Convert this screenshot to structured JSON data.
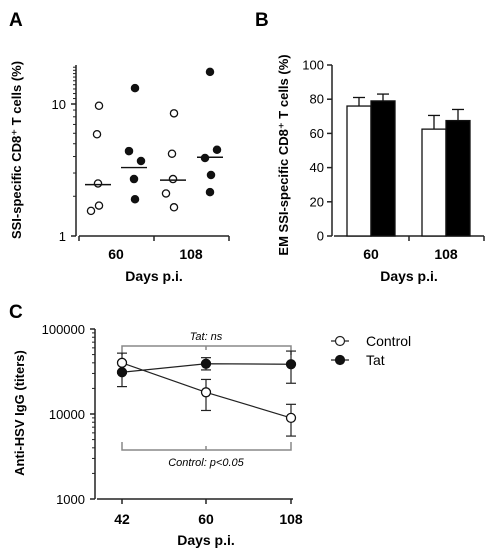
{
  "chart_data": [
    {
      "panel": "A",
      "type": "scatter",
      "ylabel": "SSI-specific CD8⁺ T cells (%)",
      "xlabel": "Days p.i.",
      "y_scale": "log",
      "ylim": [
        1,
        20
      ],
      "y_ticks": [
        "1",
        "10"
      ],
      "x_ticks": [
        "60",
        "108"
      ],
      "grid": false,
      "groups": [
        {
          "day": "60",
          "treatment": "Control",
          "marker": "open",
          "values": [
            9.7,
            5.9,
            2.5,
            1.7,
            1.55
          ],
          "median": 2.45
        },
        {
          "day": "60",
          "treatment": "Tat",
          "marker": "filled",
          "values": [
            13.2,
            4.4,
            3.7,
            2.7,
            1.9
          ],
          "median": 3.3
        },
        {
          "day": "108",
          "treatment": "Control",
          "marker": "open",
          "values": [
            8.5,
            4.2,
            2.7,
            2.1,
            1.65
          ],
          "median": 2.65
        },
        {
          "day": "108",
          "treatment": "Tat",
          "marker": "filled",
          "values": [
            17.5,
            4.5,
            3.9,
            2.9,
            2.15
          ],
          "median": 3.95
        }
      ]
    },
    {
      "panel": "B",
      "type": "bar",
      "ylabel": "EM SSI-specific CD8⁺ T cells (%)",
      "xlabel": "Days p.i.",
      "ylim": [
        0,
        100
      ],
      "y_ticks": [
        "0",
        "20",
        "40",
        "60",
        "80",
        "100"
      ],
      "categories": [
        "60",
        "108"
      ],
      "grid": false,
      "series": [
        {
          "fill": "#ffffff",
          "values": [
            76,
            62.5
          ],
          "errors": [
            5,
            8
          ]
        },
        {
          "fill": "#000000",
          "values": [
            79,
            67.5
          ],
          "errors": [
            4,
            6.5
          ]
        }
      ]
    },
    {
      "panel": "C",
      "type": "line",
      "ylabel": "Anti-HSV  IgG (titers)",
      "xlabel": "Days p.i.",
      "y_scale": "log",
      "ylim": [
        1000,
        100000
      ],
      "y_ticks": [
        "1000",
        "10000",
        "100000"
      ],
      "x": [
        "42",
        "60",
        "108"
      ],
      "grid": false,
      "legend_position": "top-right",
      "series": [
        {
          "name": "Control",
          "marker": "open",
          "values": [
            40000,
            18000,
            9000
          ],
          "err_low": [
            30000,
            11000,
            5500
          ],
          "err_high": [
            52000,
            25500,
            13000
          ]
        },
        {
          "name": "Tat",
          "marker": "filled",
          "values": [
            31000,
            39000,
            38500
          ],
          "err_low": [
            21000,
            33000,
            23000
          ],
          "err_high": [
            41000,
            46000,
            55000
          ]
        }
      ],
      "annotations": {
        "top": "Tat: ns",
        "bottom": "Control: p<0.05"
      }
    }
  ],
  "panels": {
    "a": "A",
    "b": "B",
    "c": "C"
  }
}
